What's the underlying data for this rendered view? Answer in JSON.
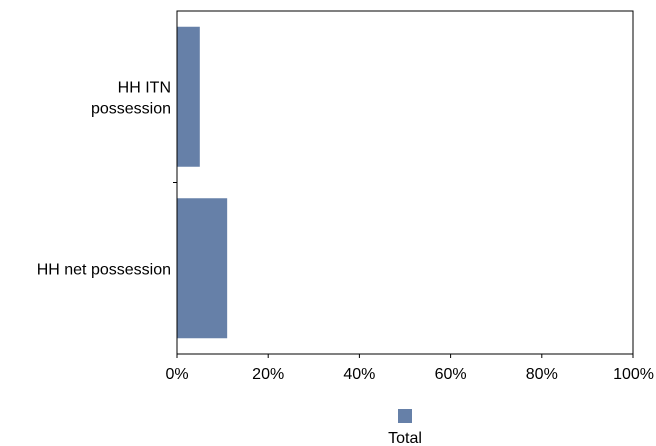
{
  "chart_data": {
    "type": "bar",
    "orientation": "horizontal",
    "categories": [
      [
        "HH ITN",
        "possession"
      ],
      [
        "HH net possession"
      ]
    ],
    "series": [
      {
        "name": "Total",
        "values": [
          5,
          11
        ],
        "color": "#6680a8"
      }
    ],
    "xlim": [
      0,
      100
    ],
    "xticks": [
      0,
      20,
      40,
      60,
      80,
      100
    ],
    "tick_suffix": "%",
    "grid": false,
    "legend_position": "bottom-center"
  }
}
